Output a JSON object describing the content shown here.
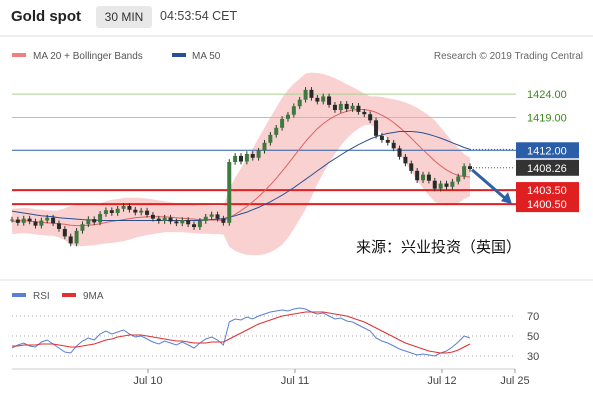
{
  "header": {
    "title": "Gold spot",
    "timeframe": "30 MIN",
    "time": "04:53:54 CET"
  },
  "legend": {
    "ma20_label": "MA 20 + Bollinger Bands",
    "ma50_label": "MA 50",
    "ma20_color": "#f08080",
    "ma50_color": "#2b4f94",
    "rsi_label": "RSI",
    "rsi_ma_label": "9MA",
    "rsi_color": "#5b7fd6",
    "rsi_ma_color": "#e03030"
  },
  "watermark": "Research © 2019 Trading Central",
  "annotation": "来源：兴业投资（英国）",
  "chart_data": [
    {
      "type": "line",
      "title": "",
      "x_axis_labels": [
        "Jul 10",
        "Jul 11",
        "Jul 12",
        "Jul 25"
      ],
      "ylim": [
        1386,
        1430
      ],
      "price_series": [
        1397.2,
        1396.5,
        1397.4,
        1396.8,
        1395.9,
        1397.0,
        1397.6,
        1396.4,
        1395.2,
        1393.6,
        1392.1,
        1394.8,
        1396.2,
        1397.3,
        1396.6,
        1398.4,
        1399.2,
        1398.6,
        1399.5,
        1400.1,
        1399.3,
        1398.7,
        1399.1,
        1398.2,
        1397.4,
        1396.9,
        1397.6,
        1396.8,
        1396.4,
        1397.1,
        1396.2,
        1395.6,
        1396.9,
        1397.8,
        1398.3,
        1397.4,
        1396.5,
        1409.5,
        1410.8,
        1409.6,
        1411.2,
        1410.4,
        1411.9,
        1413.6,
        1415.3,
        1416.8,
        1418.7,
        1419.6,
        1421.4,
        1422.8,
        1424.9,
        1423.2,
        1422.4,
        1423.5,
        1421.7,
        1420.6,
        1421.9,
        1420.8,
        1421.5,
        1420.2,
        1419.7,
        1418.4,
        1415.1,
        1414.2,
        1413.6,
        1412.4,
        1410.6,
        1409.2,
        1407.6,
        1405.6,
        1406.8,
        1405.5,
        1403.8,
        1404.9,
        1404.2,
        1405.3,
        1406.4,
        1408.6,
        1408.0
      ],
      "ma20_series": [
        1396.8,
        1396.9,
        1397.0,
        1396.9,
        1396.7,
        1396.6,
        1396.5,
        1396.4,
        1396.3,
        1396.2,
        1396.0,
        1395.9,
        1395.9,
        1396.0,
        1396.1,
        1396.3,
        1396.6,
        1396.8,
        1397.0,
        1397.2,
        1397.4,
        1397.6,
        1397.7,
        1397.8,
        1397.8,
        1397.8,
        1397.8,
        1397.7,
        1397.6,
        1397.5,
        1397.4,
        1397.3,
        1397.2,
        1397.2,
        1397.1,
        1397.1,
        1397.0,
        1397.6,
        1398.3,
        1399.1,
        1400.0,
        1401.0,
        1402.1,
        1403.3,
        1404.6,
        1406.0,
        1407.5,
        1409.1,
        1410.7,
        1412.3,
        1413.9,
        1415.3,
        1416.6,
        1417.7,
        1418.6,
        1419.3,
        1419.9,
        1420.3,
        1420.6,
        1420.7,
        1420.7,
        1420.5,
        1420.1,
        1419.5,
        1418.8,
        1417.9,
        1416.9,
        1415.8,
        1414.6,
        1413.3,
        1412.1,
        1410.9,
        1409.7,
        1408.7,
        1407.8,
        1407.1,
        1406.6,
        1406.4,
        1406.3
      ],
      "ma50_series": [
        1399.0,
        1398.8,
        1398.6,
        1398.4,
        1398.2,
        1398.0,
        1397.9,
        1397.8,
        1397.6,
        1397.5,
        1397.4,
        1397.3,
        1397.2,
        1397.1,
        1397.1,
        1397.0,
        1397.0,
        1397.0,
        1397.0,
        1397.0,
        1397.0,
        1397.0,
        1397.0,
        1397.0,
        1397.0,
        1397.0,
        1397.0,
        1397.0,
        1397.0,
        1397.0,
        1397.0,
        1397.0,
        1397.0,
        1397.1,
        1397.2,
        1397.3,
        1397.4,
        1397.7,
        1398.0,
        1398.4,
        1398.8,
        1399.3,
        1399.8,
        1400.4,
        1401.0,
        1401.7,
        1402.4,
        1403.2,
        1404.0,
        1404.9,
        1405.8,
        1406.7,
        1407.6,
        1408.5,
        1409.4,
        1410.2,
        1411.0,
        1411.8,
        1412.5,
        1413.2,
        1413.8,
        1414.4,
        1414.9,
        1415.3,
        1415.6,
        1415.8,
        1416.0,
        1416.0,
        1416.0,
        1415.9,
        1415.7,
        1415.4,
        1415.0,
        1414.6,
        1414.1,
        1413.6,
        1413.1,
        1412.6,
        1412.2
      ],
      "bb_upper": [
        1399.5,
        1399.6,
        1399.7,
        1399.6,
        1399.4,
        1399.3,
        1399.2,
        1399.1,
        1399.2,
        1399.6,
        1400.1,
        1400.3,
        1400.3,
        1400.4,
        1400.5,
        1400.7,
        1401.1,
        1401.4,
        1401.6,
        1401.8,
        1401.9,
        1401.9,
        1401.8,
        1401.7,
        1401.5,
        1401.3,
        1401.1,
        1400.9,
        1400.7,
        1400.5,
        1400.4,
        1400.3,
        1400.2,
        1400.2,
        1400.1,
        1400.1,
        1400.0,
        1403.8,
        1406.1,
        1408.2,
        1410.3,
        1412.4,
        1414.6,
        1416.8,
        1419.0,
        1421.1,
        1423.2,
        1424.9,
        1426.2,
        1427.3,
        1428.4,
        1428.6,
        1428.5,
        1428.3,
        1427.9,
        1427.4,
        1426.8,
        1426.1,
        1425.5,
        1424.8,
        1424.1,
        1423.5,
        1423.5,
        1423.4,
        1423.1,
        1422.9,
        1422.6,
        1422.2,
        1421.7,
        1421.1,
        1420.3,
        1419.4,
        1418.4,
        1416.9,
        1415.4,
        1413.8,
        1412.5,
        1411.2,
        1410.4
      ],
      "bb_lower": [
        1394.1,
        1394.2,
        1394.3,
        1394.2,
        1394.0,
        1393.9,
        1393.8,
        1393.7,
        1393.4,
        1392.8,
        1391.9,
        1391.5,
        1391.5,
        1391.6,
        1391.7,
        1391.9,
        1392.1,
        1392.2,
        1392.4,
        1392.6,
        1392.9,
        1393.3,
        1393.6,
        1393.9,
        1394.1,
        1394.3,
        1394.5,
        1394.5,
        1394.5,
        1394.5,
        1394.4,
        1394.3,
        1394.2,
        1394.2,
        1394.1,
        1394.1,
        1394.0,
        1391.4,
        1390.5,
        1390.0,
        1389.7,
        1389.6,
        1389.6,
        1389.8,
        1390.2,
        1390.9,
        1391.8,
        1393.3,
        1395.2,
        1397.3,
        1399.4,
        1402.0,
        1404.7,
        1407.1,
        1409.3,
        1411.2,
        1413.0,
        1414.5,
        1415.7,
        1416.6,
        1417.3,
        1417.5,
        1416.7,
        1415.6,
        1414.5,
        1412.9,
        1411.2,
        1409.4,
        1407.5,
        1405.5,
        1403.9,
        1402.4,
        1401.0,
        1400.5,
        1400.2,
        1400.4,
        1400.7,
        1401.6,
        1402.2
      ],
      "horizontal_levels": [
        {
          "value": 1424.0,
          "label": "1424.00",
          "color": "#a9d08e"
        },
        {
          "value": 1419.0,
          "label": "1419.00",
          "color": "#a9d08e"
        },
        {
          "value": 1412.0,
          "label": "1412.00",
          "color": "#2b5ea8"
        },
        {
          "value": 1403.5,
          "label": "1403.50",
          "color": "#e02020"
        },
        {
          "value": 1400.5,
          "label": "1400.50",
          "color": "#e02020"
        }
      ],
      "last_price": {
        "value": 1408.26,
        "label": "1408.26"
      }
    },
    {
      "type": "line",
      "title": "",
      "ylim": [
        20,
        80
      ],
      "y_ticks": [
        "70",
        "50",
        "30"
      ],
      "rsi_series": [
        38,
        41,
        43,
        40,
        39,
        44,
        46,
        42,
        38,
        34,
        33,
        40,
        45,
        48,
        46,
        52,
        55,
        52,
        54,
        56,
        52,
        49,
        50,
        47,
        44,
        42,
        45,
        43,
        41,
        44,
        41,
        38,
        43,
        47,
        49,
        46,
        41,
        64,
        67,
        66,
        69,
        67,
        70,
        72,
        74,
        75,
        76,
        75,
        77,
        78,
        77,
        74,
        72,
        73,
        70,
        67,
        68,
        65,
        64,
        61,
        58,
        55,
        48,
        45,
        43,
        40,
        37,
        35,
        33,
        31,
        32,
        31,
        30,
        33,
        35,
        39,
        44,
        50,
        48
      ],
      "rsi_ma_series": [
        40,
        40,
        41,
        41,
        41,
        42,
        42,
        42,
        41,
        40,
        39,
        39,
        40,
        41,
        42,
        44,
        46,
        47,
        49,
        50,
        51,
        51,
        51,
        50,
        49,
        48,
        47,
        46,
        45,
        45,
        44,
        43,
        43,
        43,
        44,
        44,
        44,
        47,
        50,
        53,
        56,
        59,
        62,
        64,
        66,
        68,
        70,
        71,
        72,
        73,
        74,
        74,
        74,
        74,
        73,
        72,
        71,
        70,
        68,
        66,
        64,
        61,
        58,
        55,
        52,
        49,
        46,
        43,
        41,
        39,
        37,
        35,
        34,
        33,
        33,
        34,
        36,
        39,
        42
      ]
    }
  ]
}
